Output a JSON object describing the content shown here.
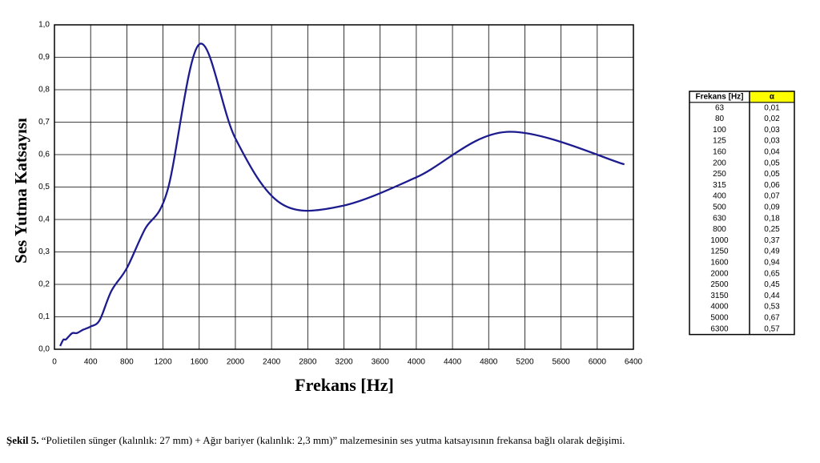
{
  "chart_data": {
    "type": "line",
    "y_label": "Ses Yutma Katsayısı",
    "x_label": "Frekans [Hz]",
    "x": [
      63,
      80,
      100,
      125,
      160,
      200,
      250,
      315,
      400,
      500,
      630,
      800,
      1000,
      1250,
      1600,
      2000,
      2500,
      3150,
      4000,
      5000,
      6300
    ],
    "series": [
      {
        "color": "#1c1c8f",
        "values": [
          0.01,
          0.02,
          0.03,
          0.03,
          0.04,
          0.05,
          0.05,
          0.06,
          0.07,
          0.09,
          0.18,
          0.25,
          0.37,
          0.49,
          0.94,
          0.65,
          0.45,
          0.44,
          0.53,
          0.67,
          0.57
        ],
        "value_labels": [
          "0,01",
          "0,02",
          "0,03",
          "0,03",
          "0,04",
          "0,05",
          "0,05",
          "0,06",
          "0,07",
          "0,09",
          "0,18",
          "0,25",
          "0,37",
          "0,49",
          "0,94",
          "0,65",
          "0,45",
          "0,44",
          "0,53",
          "0,67",
          "0,57"
        ]
      }
    ],
    "xlim": [
      0,
      6400
    ],
    "xticks": [
      0,
      400,
      800,
      1200,
      1600,
      2000,
      2400,
      2800,
      3200,
      3600,
      4000,
      4400,
      4800,
      5200,
      5600,
      6000,
      6400
    ],
    "ylim": [
      0,
      1
    ],
    "yticks": [
      {
        "value": 0,
        "label": "0,0"
      },
      {
        "value": 0.1,
        "label": "0,1"
      },
      {
        "value": 0.2,
        "label": "0,2"
      },
      {
        "value": 0.3,
        "label": "0,3"
      },
      {
        "value": 0.4,
        "label": "0,4"
      },
      {
        "value": 0.5,
        "label": "0,5"
      },
      {
        "value": 0.6,
        "label": "0,6"
      },
      {
        "value": 0.7,
        "label": "0,7"
      },
      {
        "value": 0.8,
        "label": "0,8"
      },
      {
        "value": 0.9,
        "label": "0,9"
      },
      {
        "value": 1,
        "label": "1,0"
      }
    ],
    "grid": true,
    "table_headers": [
      "Frekans [Hz]",
      "α"
    ]
  },
  "caption": {
    "label": "Şekil 5.",
    "text": "“Polietilen sünger (kalınlık: 27 mm) + Ağır bariyer (kalınlık: 2,3 mm)” malzemesinin ses yutma katsayısının frekansa bağlı olarak değişimi."
  }
}
